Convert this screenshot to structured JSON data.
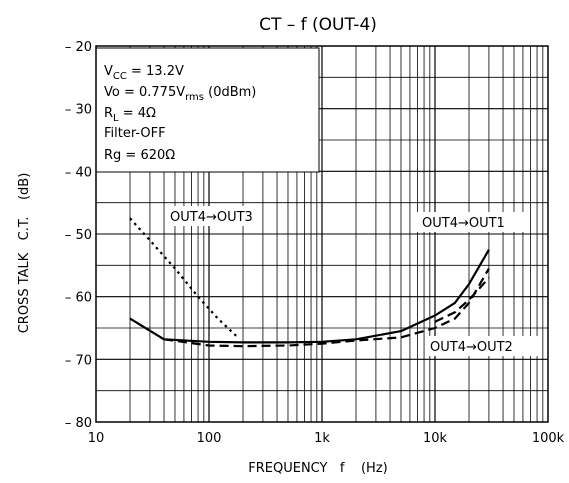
{
  "chart_data": {
    "type": "line",
    "title": "CT  –  f (OUT-4)",
    "xlabel": "FREQUENCY   f    (Hz)",
    "ylabel": "CROSS TALK   C.T.    (dB)",
    "x_scale": "log",
    "xlim": [
      10,
      100000
    ],
    "ylim": [
      -80,
      -20
    ],
    "x_ticks": [
      10,
      100,
      1000,
      10000,
      100000
    ],
    "x_tick_labels": [
      "10",
      "100",
      "1k",
      "10k",
      "100k"
    ],
    "y_ticks": [
      -20,
      -30,
      -40,
      -50,
      -60,
      -70,
      -80
    ],
    "y_tick_labels": [
      "– 20",
      "– 30",
      "– 40",
      "– 50",
      "– 60",
      "– 70",
      "– 80"
    ],
    "grid": true,
    "conditions": [
      "VCC = 13.2V",
      "Vo = 0.775Vrms  (0dBm)",
      "RL = 4Ω",
      "Filter-OFF",
      "Rg = 620Ω"
    ],
    "series": [
      {
        "name": "OUT4→OUT1",
        "style": "solid",
        "x": [
          20,
          40,
          100,
          200,
          500,
          1000,
          2000,
          5000,
          10000,
          15000,
          20000,
          30000
        ],
        "y": [
          -63.5,
          -66.8,
          -67.2,
          -67.3,
          -67.3,
          -67.2,
          -66.8,
          -65.5,
          -63,
          -61,
          -58,
          -52.5
        ]
      },
      {
        "name": "OUT4→OUT2",
        "style": "dashed",
        "x": [
          40,
          100,
          200,
          500,
          1000,
          2000,
          5000,
          10000,
          15000,
          20000,
          30000
        ],
        "y": [
          -66.8,
          -67.8,
          -67.9,
          -67.8,
          -67.5,
          -67,
          -66.5,
          -65,
          -63.5,
          -61,
          -55.5
        ]
      },
      {
        "name": "OUT4→OUT3",
        "style": "dotted",
        "x": [
          20,
          30,
          50,
          80,
          120,
          180
        ],
        "y": [
          -47.5,
          -51,
          -55.5,
          -60,
          -63.5,
          -66.5
        ]
      },
      {
        "name": "",
        "style": "dashed",
        "x": [
          10000,
          15000,
          20000,
          30000
        ],
        "y": [
          -64,
          -62.5,
          -60.5,
          -57
        ]
      }
    ]
  },
  "labels": {
    "cond_vcc_main": "V",
    "cond_vcc_sub": "CC",
    "cond_vcc_rest": " = 13.2V",
    "cond_vo_main": "Vo = 0.775V",
    "cond_vo_sub": "rms",
    "cond_vo_rest": "  (0dBm)",
    "cond_rl_main": "R",
    "cond_rl_sub": "L",
    "cond_rl_rest": " = 4Ω",
    "cond_filter": "Filter-OFF",
    "cond_rg": "Rg = 620Ω"
  }
}
